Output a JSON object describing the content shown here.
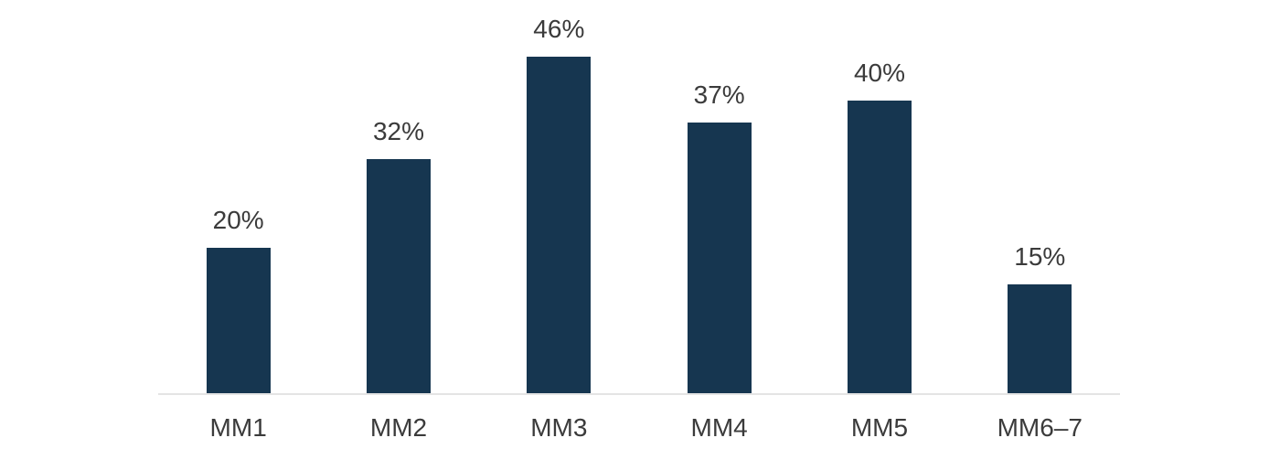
{
  "chart_data": {
    "type": "bar",
    "categories": [
      "MM1",
      "MM2",
      "MM3",
      "MM4",
      "MM5",
      "MM6–7"
    ],
    "values": [
      20,
      32,
      46,
      37,
      40,
      15
    ],
    "value_labels": [
      "20%",
      "32%",
      "46%",
      "37%",
      "40%",
      "15%"
    ],
    "title": "",
    "xlabel": "",
    "ylabel": "",
    "ylim": [
      0,
      50
    ],
    "grid": false,
    "legend": false,
    "bar_color": "#163650",
    "label_color": "#3b3b3b",
    "axis_line_color": "#e4e4e4",
    "background_color": "#ffffff"
  }
}
